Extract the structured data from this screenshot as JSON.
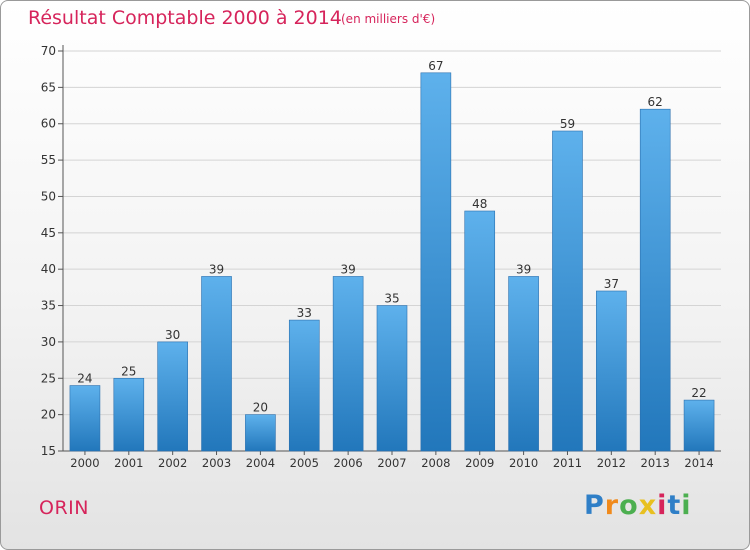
{
  "chart_data": {
    "type": "bar",
    "title": "Résultat Comptable 2000 à 2014",
    "unit_label": "(en milliers d'€)",
    "xlabel": "",
    "ylabel": "",
    "categories": [
      "2000",
      "2001",
      "2002",
      "2003",
      "2004",
      "2005",
      "2006",
      "2007",
      "2008",
      "2009",
      "2010",
      "2011",
      "2012",
      "2013",
      "2014"
    ],
    "values": [
      24,
      25,
      30,
      39,
      20,
      33,
      39,
      35,
      67,
      48,
      39,
      59,
      37,
      62,
      22
    ],
    "ylim": [
      15,
      70
    ],
    "yticks": [
      15,
      20,
      25,
      30,
      35,
      40,
      45,
      50,
      55,
      60,
      65,
      70
    ],
    "grid": true,
    "bar_color": "#3a8fd6"
  },
  "commune": "ORIN",
  "logo": {
    "letters": [
      "P",
      "r",
      "o",
      "x",
      "i",
      "t",
      "i"
    ],
    "colors": [
      "#2f7fc7",
      "#f08a1c",
      "#4caf50",
      "#e8c020",
      "#d6245b",
      "#2f7fc7",
      "#4caf50"
    ]
  },
  "colors": {
    "accent": "#d6245b"
  }
}
